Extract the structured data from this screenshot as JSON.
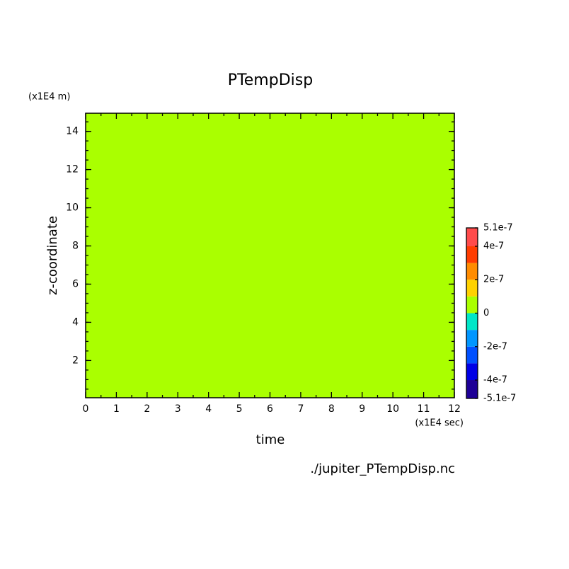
{
  "chart_data": {
    "type": "contour",
    "title": "PTempDisp",
    "x_label": "time",
    "x_unit": "(x1E4 sec)",
    "y_label": "z-coordinate",
    "y_unit": "(x1E4 m)",
    "source": "./jupiter_PTempDisp.nc",
    "values": [
      [
        0
      ]
    ],
    "xlim": [
      0,
      12
    ],
    "xticks": [
      0,
      1,
      2,
      3,
      4,
      5,
      6,
      7,
      8,
      9,
      10,
      11,
      12
    ],
    "ylim": [
      0.05,
      14.95
    ],
    "yticks": [
      2,
      4,
      6,
      8,
      10,
      12,
      14
    ],
    "levels": [
      -5.1e-07,
      -4e-07,
      -3e-07,
      -2e-07,
      -1e-07,
      0,
      1e-07,
      2e-07,
      3e-07,
      4e-07,
      5.1e-07
    ],
    "colors": [
      "#1e0096",
      "#0000e6",
      "#0050ff",
      "#0096ff",
      "#00e6c8",
      "#aaff00",
      "#ffd200",
      "#ff8c00",
      "#ff3c00",
      "#ff4b4b"
    ],
    "colorbar_ticks": [
      {
        "value": 5.1e-07,
        "label": "5.1e-7"
      },
      {
        "value": 4e-07,
        "label": "4e-7"
      },
      {
        "value": 2e-07,
        "label": "2e-7"
      },
      0,
      {
        "value": -2e-07,
        "label": "-2e-7"
      },
      {
        "value": -4e-07,
        "label": "-4e-7"
      },
      {
        "value": -5.1e-07,
        "label": "-5.1e-7"
      }
    ]
  }
}
